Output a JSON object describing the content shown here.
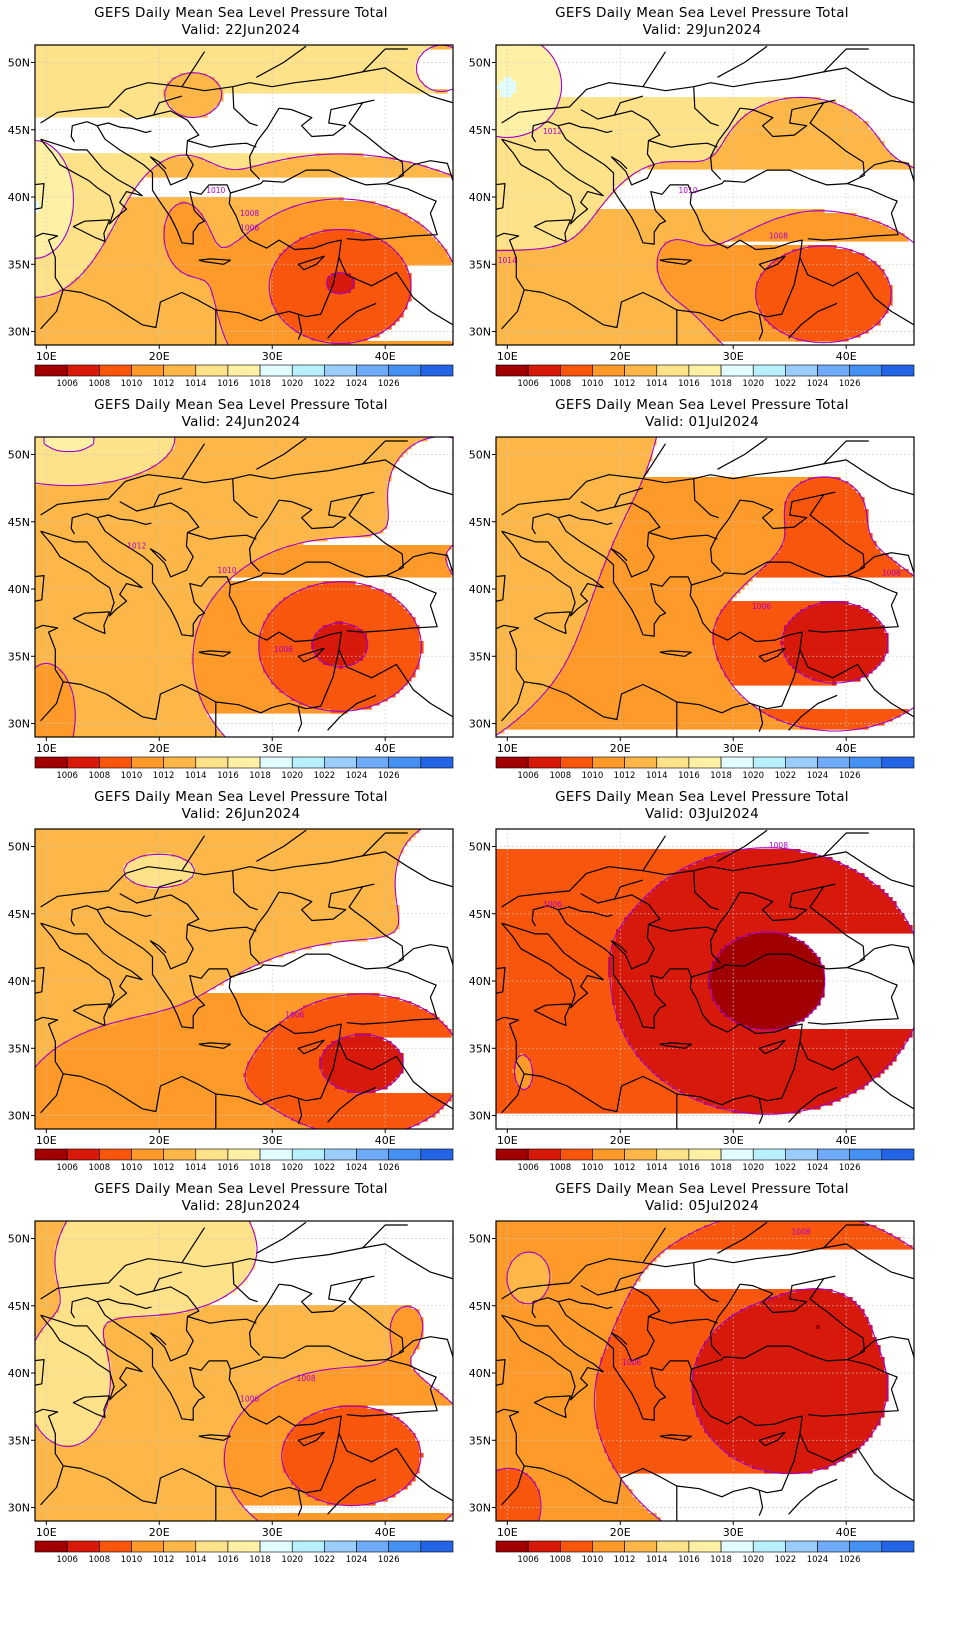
{
  "panels": [
    {
      "title": "GEFS Daily Mean Sea Level Pressure Total",
      "valid": "Valid: 22Jun2024",
      "iso_labels": [
        "1010",
        "1008",
        "1006"
      ],
      "field": "pA"
    },
    {
      "title": "GEFS Daily Mean Sea Level Pressure Total",
      "valid": "Valid: 29Jun2024",
      "iso_labels": [
        "1012",
        "1010",
        "1008",
        "1014"
      ],
      "field": "pB"
    },
    {
      "title": "GEFS Daily Mean Sea Level Pressure Total",
      "valid": "Valid: 24Jun2024",
      "iso_labels": [
        "1012",
        "1010",
        "1006"
      ],
      "field": "pC"
    },
    {
      "title": "GEFS Daily Mean Sea Level Pressure Total",
      "valid": "Valid: 01Jul2024",
      "iso_labels": [
        "1008",
        "1006"
      ],
      "field": "pD"
    },
    {
      "title": "GEFS Daily Mean Sea Level Pressure Total",
      "valid": "Valid: 26Jun2024",
      "iso_labels": [
        "1006"
      ],
      "field": "pE"
    },
    {
      "title": "GEFS Daily Mean Sea Level Pressure Total",
      "valid": "Valid: 03Jul2024",
      "iso_labels": [
        "1006",
        "1008"
      ],
      "field": "pF"
    },
    {
      "title": "GEFS Daily Mean Sea Level Pressure Total",
      "valid": "Valid: 28Jun2024",
      "iso_labels": [
        "1008",
        "1006"
      ],
      "field": "pG"
    },
    {
      "title": "GEFS Daily Mean Sea Level Pressure Total",
      "valid": "Valid: 05Jul2024",
      "iso_labels": [
        "1008",
        "1006"
      ],
      "field": "pH"
    }
  ],
  "axes": {
    "lon_labels": [
      "10E",
      "20E",
      "30E",
      "40E"
    ],
    "lat_labels": [
      "50N",
      "45N",
      "40N",
      "35N",
      "30N"
    ],
    "lon_values": [
      10,
      20,
      30,
      40
    ],
    "lat_values": [
      50,
      45,
      40,
      35,
      30
    ],
    "lon_range": [
      9,
      46
    ],
    "lat_range": [
      29,
      51.3
    ]
  },
  "colorbar": {
    "labels": [
      "1006",
      "1008",
      "1010",
      "1012",
      "1014",
      "1016",
      "1018",
      "1020",
      "1022",
      "1024",
      "1026"
    ],
    "colors": [
      "#a00000",
      "#d7190b",
      "#f8550d",
      "#fd9a2a",
      "#fcb748",
      "#fee28a",
      "#fef0a4",
      "#e1fcff",
      "#b8f0fe",
      "#9acdfa",
      "#6eaaf7",
      "#4690f2",
      "#2364e4"
    ]
  },
  "colors": {
    "coastline": "#000000",
    "isobar": "#a000c8",
    "gridline": "#c8c8c8"
  }
}
